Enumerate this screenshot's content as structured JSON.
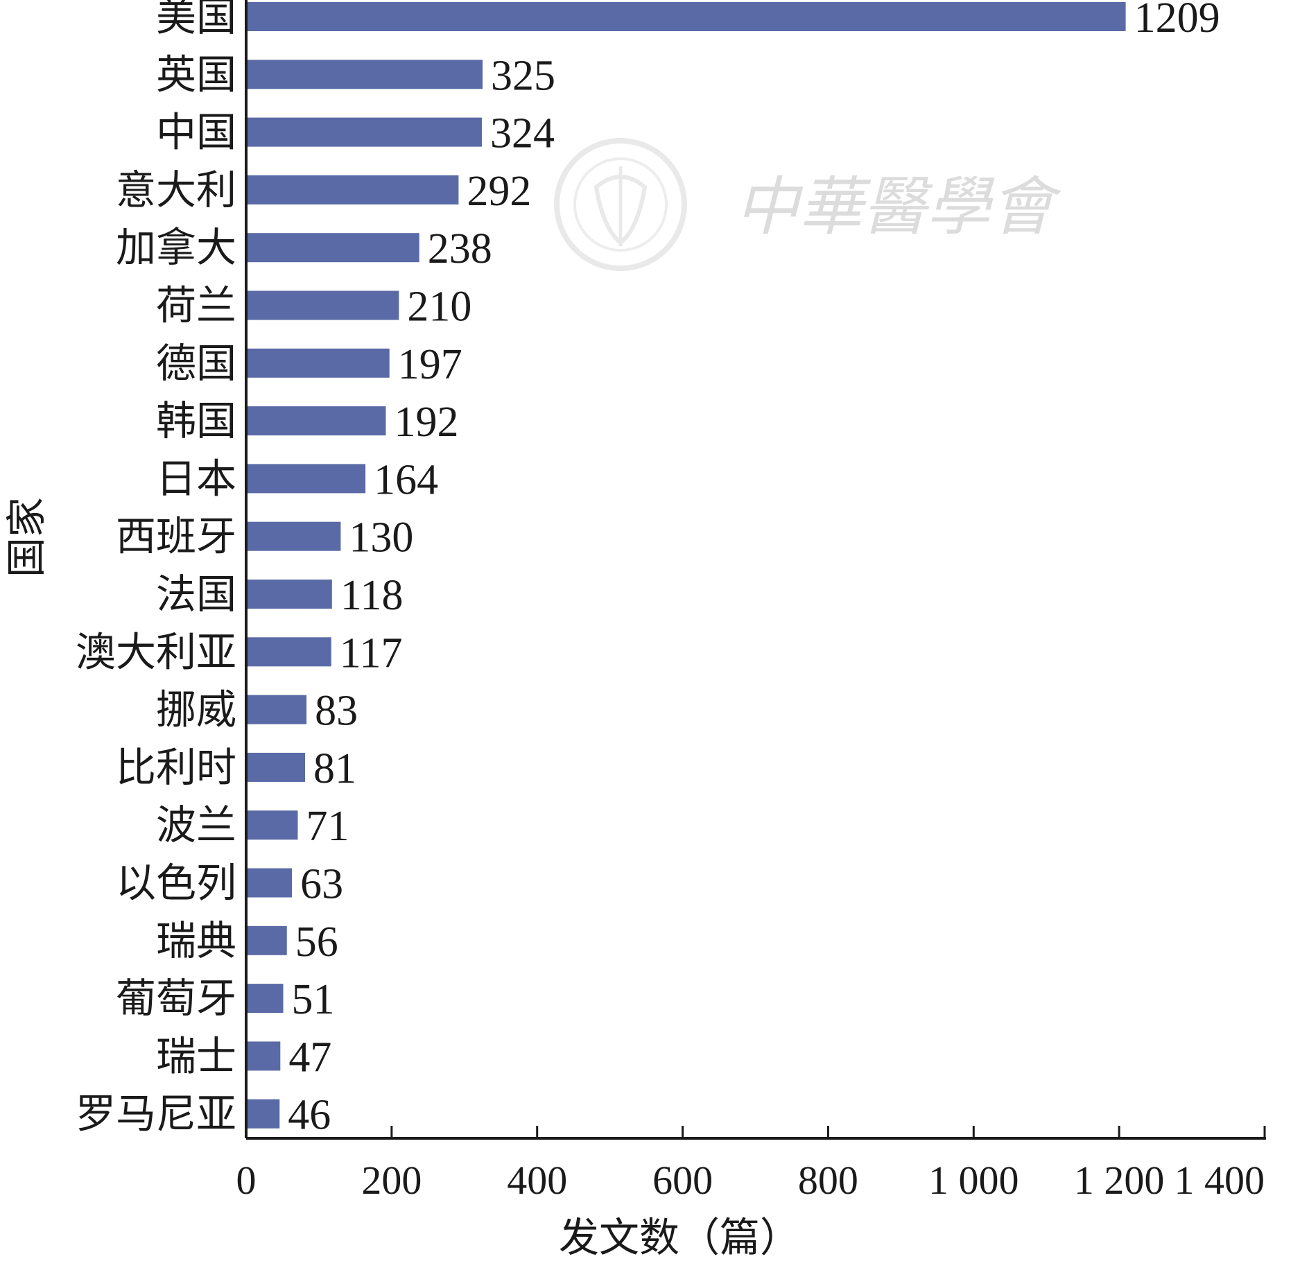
{
  "chart_data": {
    "type": "bar",
    "orientation": "horizontal",
    "categories": [
      "美国",
      "英国",
      "中国",
      "意大利",
      "加拿大",
      "荷兰",
      "德国",
      "韩国",
      "日本",
      "西班牙",
      "法国",
      "澳大利亚",
      "挪威",
      "比利时",
      "波兰",
      "以色列",
      "瑞典",
      "葡萄牙",
      "瑞士",
      "罗马尼亚"
    ],
    "values": [
      1209,
      325,
      324,
      292,
      238,
      210,
      197,
      192,
      164,
      130,
      118,
      117,
      83,
      81,
      71,
      63,
      56,
      51,
      47,
      46
    ],
    "xlabel": "发文数（篇）",
    "ylabel": "国家",
    "xlim": [
      0,
      1400
    ],
    "xticks": [
      0,
      200,
      400,
      600,
      800,
      1000,
      1200,
      1400
    ],
    "xtick_labels": [
      "0",
      "200",
      "400",
      "600",
      "800",
      "1 000",
      "1 200",
      "1 400"
    ],
    "bar_color": "#5a6aa6",
    "grid": false,
    "legend": "none"
  },
  "watermark": {
    "text": "中華醫學會",
    "seal": "seal-icon"
  }
}
